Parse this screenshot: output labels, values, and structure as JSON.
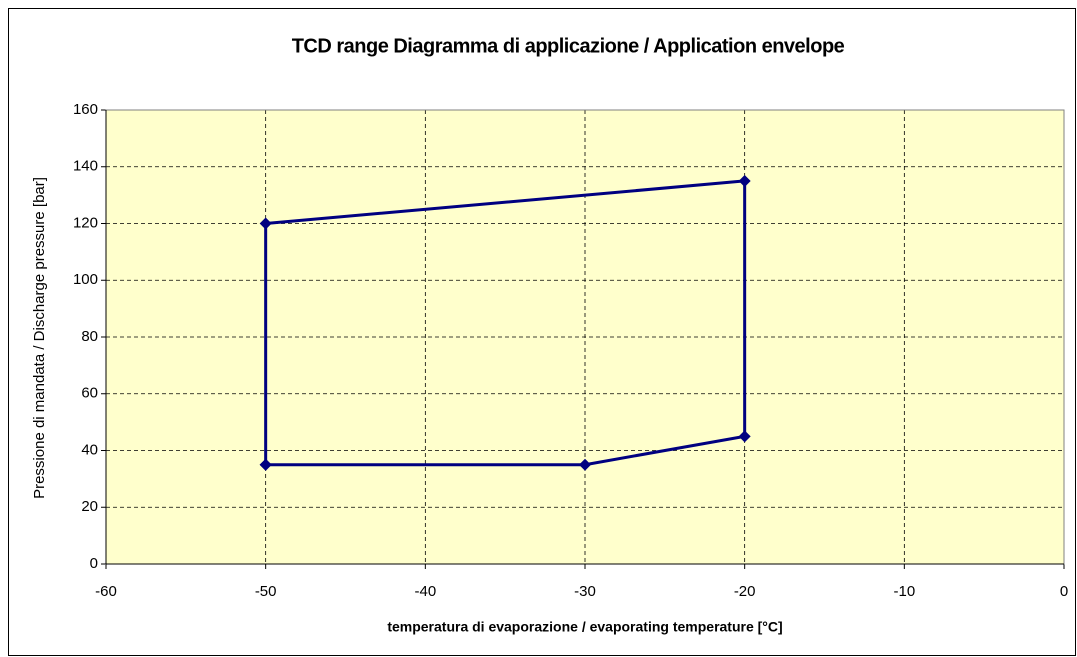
{
  "chart_data": {
    "type": "line",
    "title": "TCD range Diagramma di applicazione / Application envelope",
    "x_label": "temperatura di evaporazione / evaporating temperature [°C]",
    "y_label": "Pressione di mandata / Discharge pressure [bar]",
    "x": [
      -50,
      -30,
      -20,
      -20,
      -50,
      -50
    ],
    "series": [
      {
        "color": "#000080",
        "values": [
          35,
          35,
          45,
          135,
          120,
          35
        ]
      }
    ],
    "xlim": [
      -60,
      0
    ],
    "xticks": [
      -60,
      -50,
      -40,
      -30,
      -20,
      -10,
      0
    ],
    "ylim": [
      0,
      160
    ],
    "yticks": [
      0,
      20,
      40,
      60,
      80,
      100,
      120,
      140,
      160
    ],
    "grid": true,
    "plot_background": "#ffffcc"
  }
}
